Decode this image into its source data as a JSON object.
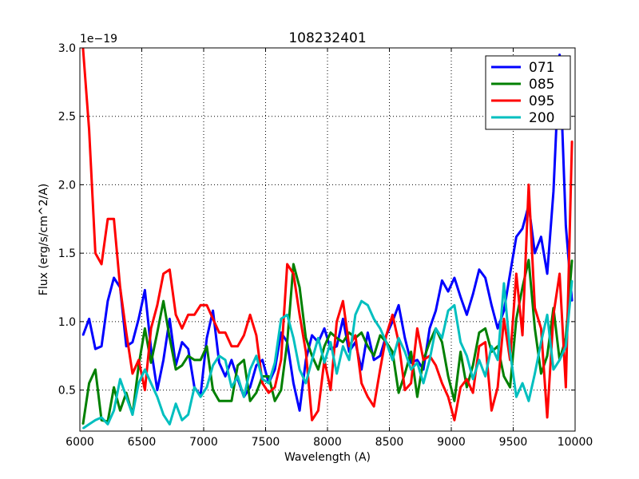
{
  "chart_data": {
    "type": "line",
    "title": "108232401",
    "xlabel": "Wavelength (A)",
    "ylabel": "Flux (erg/s/cm^2/A)",
    "y_scale_label": "1e−19",
    "xlim": [
      6000,
      10000
    ],
    "ylim": [
      0.2,
      3.0
    ],
    "grid": true,
    "legend_position": "top-right",
    "x_ticks": [
      6000,
      6500,
      7000,
      7500,
      8000,
      8500,
      9000,
      9500,
      10000
    ],
    "x_tick_labels": [
      "6000",
      "6500",
      "7000",
      "7500",
      "8000",
      "8500",
      "9000",
      "9500",
      "10000"
    ],
    "y_ticks": [
      0.5,
      1.0,
      1.5,
      2.0,
      2.5,
      3.0
    ],
    "y_tick_labels": [
      "0.5",
      "1.0",
      "1.5",
      "2.0",
      "2.5",
      "3.0"
    ],
    "x": [
      6025,
      6075,
      6125,
      6175,
      6225,
      6275,
      6325,
      6375,
      6425,
      6475,
      6525,
      6575,
      6625,
      6675,
      6725,
      6775,
      6825,
      6875,
      6925,
      6975,
      7025,
      7075,
      7125,
      7175,
      7225,
      7275,
      7325,
      7375,
      7425,
      7475,
      7525,
      7575,
      7625,
      7675,
      7725,
      7775,
      7825,
      7875,
      7925,
      7975,
      8025,
      8075,
      8125,
      8175,
      8225,
      8275,
      8325,
      8375,
      8425,
      8475,
      8525,
      8575,
      8625,
      8675,
      8725,
      8775,
      8825,
      8875,
      8925,
      8975,
      9025,
      9075,
      9125,
      9175,
      9225,
      9275,
      9325,
      9375,
      9425,
      9475,
      9525,
      9575,
      9625,
      9675,
      9725,
      9775,
      9825,
      9875,
      9925,
      9975
    ],
    "series": [
      {
        "name": "071",
        "color": "#0000ff",
        "values": [
          0.9,
          1.02,
          0.8,
          0.82,
          1.15,
          1.32,
          1.25,
          0.82,
          0.85,
          1.02,
          1.23,
          0.8,
          0.5,
          0.72,
          1.02,
          0.68,
          0.85,
          0.8,
          0.52,
          0.46,
          0.88,
          1.08,
          0.7,
          0.6,
          0.72,
          0.58,
          0.45,
          0.52,
          0.68,
          0.72,
          0.55,
          0.65,
          0.92,
          0.85,
          0.55,
          0.35,
          0.72,
          0.9,
          0.85,
          0.95,
          0.8,
          0.82,
          1.02,
          0.78,
          0.85,
          0.65,
          0.92,
          0.72,
          0.75,
          0.9,
          1.0,
          1.12,
          0.88,
          0.7,
          0.72,
          0.65,
          0.95,
          1.08,
          1.3,
          1.22,
          1.32,
          1.18,
          1.05,
          1.2,
          1.38,
          1.32,
          1.12,
          0.95,
          1.08,
          1.35,
          1.62,
          1.68,
          1.85,
          1.5,
          1.62,
          1.35,
          1.95,
          2.95,
          1.7,
          1.15
        ]
      },
      {
        "name": "085",
        "color": "#008000",
        "values": [
          0.25,
          0.55,
          0.65,
          0.28,
          0.27,
          0.52,
          0.35,
          0.48,
          0.32,
          0.68,
          0.95,
          0.7,
          0.92,
          1.15,
          0.88,
          0.65,
          0.68,
          0.75,
          0.72,
          0.72,
          0.82,
          0.5,
          0.42,
          0.42,
          0.42,
          0.68,
          0.72,
          0.42,
          0.48,
          0.6,
          0.6,
          0.42,
          0.5,
          0.85,
          1.42,
          1.25,
          0.88,
          0.75,
          0.65,
          0.82,
          0.92,
          0.88,
          0.85,
          0.92,
          0.88,
          0.92,
          0.82,
          0.75,
          0.9,
          0.85,
          0.78,
          0.48,
          0.62,
          0.78,
          0.45,
          0.72,
          0.85,
          0.95,
          0.85,
          0.6,
          0.42,
          0.78,
          0.52,
          0.68,
          0.92,
          0.95,
          0.78,
          0.82,
          0.6,
          0.52,
          1.02,
          1.25,
          1.45,
          0.95,
          0.62,
          0.75,
          1.1,
          0.72,
          0.88,
          1.45
        ]
      },
      {
        "name": "095",
        "color": "#ff0000",
        "values": [
          3.0,
          2.4,
          1.5,
          1.42,
          1.75,
          1.75,
          1.25,
          0.92,
          0.62,
          0.72,
          0.5,
          0.95,
          1.12,
          1.35,
          1.38,
          1.05,
          0.95,
          1.05,
          1.05,
          1.12,
          1.12,
          1.02,
          0.92,
          0.92,
          0.82,
          0.82,
          0.9,
          1.05,
          0.9,
          0.55,
          0.48,
          0.52,
          0.72,
          1.42,
          1.35,
          1.05,
          0.78,
          0.28,
          0.35,
          0.72,
          0.5,
          1.0,
          1.15,
          0.82,
          0.9,
          0.55,
          0.45,
          0.38,
          0.65,
          0.9,
          1.05,
          0.85,
          0.5,
          0.55,
          0.95,
          0.72,
          0.75,
          0.68,
          0.55,
          0.45,
          0.28,
          0.52,
          0.58,
          0.48,
          0.82,
          0.85,
          0.35,
          0.52,
          1.02,
          0.72,
          1.35,
          0.9,
          2.0,
          1.1,
          0.95,
          0.3,
          1.05,
          1.35,
          0.52,
          2.32
        ]
      },
      {
        "name": "200",
        "color": "#00bfbf",
        "values": [
          0.22,
          0.25,
          0.28,
          0.3,
          0.25,
          0.35,
          0.58,
          0.45,
          0.32,
          0.55,
          0.65,
          0.55,
          0.45,
          0.32,
          0.25,
          0.4,
          0.28,
          0.32,
          0.52,
          0.45,
          0.52,
          0.68,
          0.75,
          0.72,
          0.52,
          0.6,
          0.45,
          0.65,
          0.75,
          0.58,
          0.55,
          0.7,
          1.02,
          1.05,
          0.88,
          0.65,
          0.55,
          0.72,
          0.88,
          0.7,
          0.85,
          0.62,
          0.82,
          0.72,
          1.05,
          1.15,
          1.12,
          1.02,
          0.95,
          0.85,
          0.72,
          0.88,
          0.78,
          0.65,
          0.7,
          0.55,
          0.72,
          0.95,
          0.88,
          1.08,
          1.12,
          0.85,
          0.75,
          0.58,
          0.72,
          0.6,
          0.82,
          0.72,
          1.28,
          0.78,
          0.45,
          0.55,
          0.42,
          0.62,
          0.85,
          1.05,
          0.65,
          0.72,
          0.82,
          1.3
        ]
      }
    ]
  }
}
